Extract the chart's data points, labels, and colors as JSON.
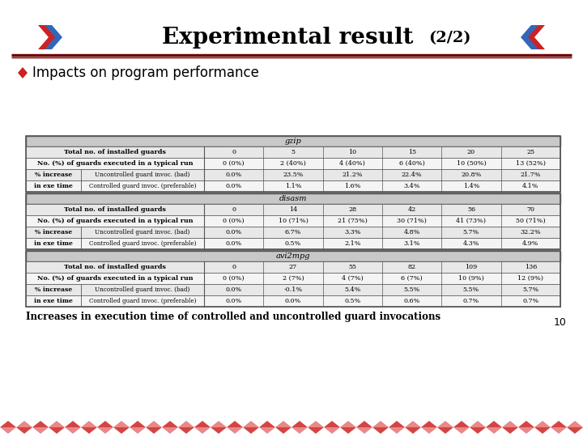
{
  "title_main": "Experimental result",
  "title_sub": "(2/2)",
  "bullet_text": "Impacts on program performance",
  "caption": "Increases in execution time of controlled and uncontrolled guard invocations",
  "page_num": "10",
  "bg_color": "#ffffff",
  "header_line_color": "#6b0000",
  "table_border_color": "#555555",
  "table": {
    "sections": [
      {
        "header": "gzip",
        "rows": [
          {
            "label1": "Total no. of installed guards",
            "label2": "",
            "values": [
              "0",
              "5",
              "10",
              "15",
              "20",
              "25"
            ]
          },
          {
            "label1": "No. (%) of guards executed in a typical run",
            "label2": "",
            "values": [
              "0 (0%)",
              "2 (40%)",
              "4 (40%)",
              "6 (40%)",
              "10 (50%)",
              "13 (52%)"
            ]
          },
          {
            "label1": "% increase",
            "label2": "Uncontrolled guard invoc. (bad)",
            "values": [
              "0.0%",
              "23.5%",
              "21.2%",
              "22.4%",
              "20.8%",
              "21.7%"
            ]
          },
          {
            "label1": "in exe time",
            "label2": "Controlled guard invoc. (preferable)",
            "values": [
              "0.0%",
              "1.1%",
              "1.6%",
              "3.4%",
              "1.4%",
              "4.1%"
            ]
          }
        ]
      },
      {
        "header": "disasm",
        "rows": [
          {
            "label1": "Total no. of installed guards",
            "label2": "",
            "values": [
              "0",
              "14",
              "28",
              "42",
              "56",
              "70"
            ]
          },
          {
            "label1": "No. (%) of guards executed in a typical run",
            "label2": "",
            "values": [
              "0 (0%)",
              "10 (71%)",
              "21 (75%)",
              "30 (71%)",
              "41 (73%)",
              "50 (71%)"
            ]
          },
          {
            "label1": "% increase",
            "label2": "Uncontrolled guard invoc. (bad)",
            "values": [
              "0.0%",
              "6.7%",
              "3.3%",
              "4.8%",
              "5.7%",
              "32.2%"
            ]
          },
          {
            "label1": "in exe time",
            "label2": "Controlled guard invoc. (preferable)",
            "values": [
              "0.0%",
              "0.5%",
              "2.1%",
              "3.1%",
              "4.3%",
              "4.9%"
            ]
          }
        ]
      },
      {
        "header": "avi2mpg",
        "rows": [
          {
            "label1": "Total no. of installed guards",
            "label2": "",
            "values": [
              "0",
              "27",
              "55",
              "82",
              "109",
              "136"
            ]
          },
          {
            "label1": "No. (%) of guards executed in a typical run",
            "label2": "",
            "values": [
              "0 (0%)",
              "2 (7%)",
              "4 (7%)",
              "6 (7%)",
              "10 (9%)",
              "12 (9%)"
            ]
          },
          {
            "label1": "% increase",
            "label2": "Uncontrolled guard invoc. (bad)",
            "values": [
              "0.0%",
              "-0.1%",
              "5.4%",
              "5.5%",
              "5.5%",
              "5.7%"
            ]
          },
          {
            "label1": "in exe time",
            "label2": "Controlled guard invoc. (preferable)",
            "values": [
              "0.0%",
              "0.0%",
              "0.5%",
              "0.6%",
              "0.7%",
              "0.7%"
            ]
          }
        ]
      }
    ]
  }
}
